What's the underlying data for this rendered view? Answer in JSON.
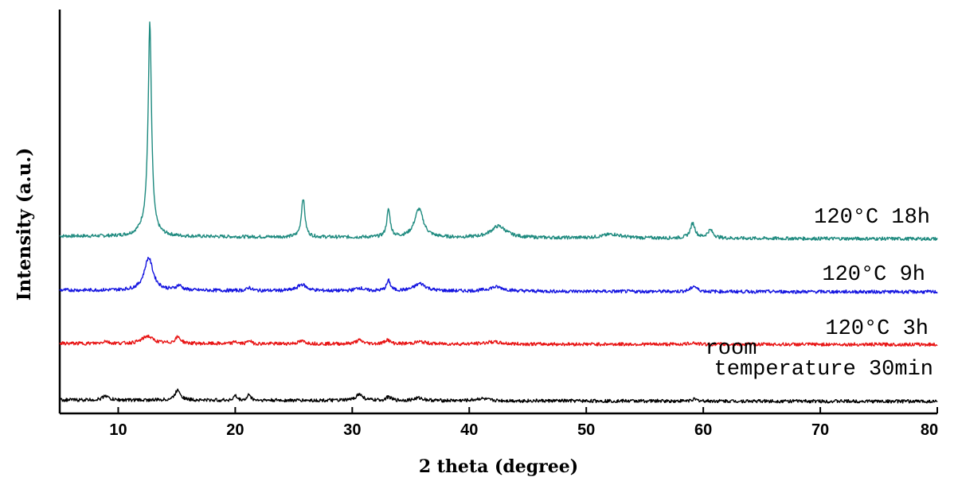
{
  "chart_data": {
    "type": "line",
    "title": "",
    "xlabel": "2 theta (degree)",
    "ylabel": "Intensity (a.u.)",
    "xlim": [
      5,
      80
    ],
    "xticks": [
      10,
      20,
      30,
      40,
      50,
      60,
      70,
      80
    ],
    "yticks_shown": false,
    "grid": false,
    "legend": "none",
    "labels_position": "right-of-curves",
    "series": [
      {
        "name": "120°C 18h",
        "label_lines": [
          "120°C 18h"
        ],
        "color": "#1e8a7f",
        "baseline": [
          [
            5,
            0.6
          ],
          [
            40,
            0.52
          ],
          [
            80,
            0.47
          ]
        ],
        "peaks": [
          {
            "x": 12.7,
            "h": 9.8,
            "w": 0.17
          },
          {
            "x": 12.4,
            "h": 0.5,
            "w": 0.6
          },
          {
            "x": 25.8,
            "h": 1.85,
            "w": 0.18
          },
          {
            "x": 33.1,
            "h": 1.3,
            "w": 0.18
          },
          {
            "x": 35.7,
            "h": 1.35,
            "w": 0.45
          },
          {
            "x": 42.5,
            "h": 0.55,
            "w": 0.8
          },
          {
            "x": 52.2,
            "h": 0.18,
            "w": 1.0
          },
          {
            "x": 59.1,
            "h": 0.7,
            "w": 0.25
          },
          {
            "x": 60.6,
            "h": 0.38,
            "w": 0.3
          }
        ]
      },
      {
        "name": "120°C 9h",
        "label_lines": [
          "120°C 9h"
        ],
        "color": "#1414e0",
        "baseline": [
          [
            5,
            0.38
          ],
          [
            40,
            0.33
          ],
          [
            80,
            0.3
          ]
        ],
        "peaks": [
          {
            "x": 12.6,
            "h": 1.55,
            "w": 0.45
          },
          {
            "x": 15.2,
            "h": 0.22,
            "w": 0.3
          },
          {
            "x": 21.2,
            "h": 0.15,
            "w": 0.2
          },
          {
            "x": 25.7,
            "h": 0.3,
            "w": 0.45
          },
          {
            "x": 30.6,
            "h": 0.14,
            "w": 0.4
          },
          {
            "x": 33.1,
            "h": 0.48,
            "w": 0.2
          },
          {
            "x": 35.8,
            "h": 0.35,
            "w": 0.6
          },
          {
            "x": 42.3,
            "h": 0.2,
            "w": 0.8
          },
          {
            "x": 59.2,
            "h": 0.26,
            "w": 0.3
          }
        ]
      },
      {
        "name": "120°C 3h",
        "label_lines": [
          "120°C 3h"
        ],
        "color": "#e81414",
        "baseline": [
          [
            5,
            0.22
          ],
          [
            40,
            0.19
          ],
          [
            80,
            0.17
          ]
        ],
        "peaks": [
          {
            "x": 8.9,
            "h": 0.12,
            "w": 0.25
          },
          {
            "x": 12.5,
            "h": 0.35,
            "w": 0.55
          },
          {
            "x": 15.1,
            "h": 0.3,
            "w": 0.3
          },
          {
            "x": 20.0,
            "h": 0.12,
            "w": 0.15
          },
          {
            "x": 21.2,
            "h": 0.18,
            "w": 0.15
          },
          {
            "x": 25.7,
            "h": 0.12,
            "w": 0.4
          },
          {
            "x": 30.6,
            "h": 0.17,
            "w": 0.35
          },
          {
            "x": 33.0,
            "h": 0.2,
            "w": 0.25
          },
          {
            "x": 35.8,
            "h": 0.1,
            "w": 0.6
          },
          {
            "x": 42.0,
            "h": 0.1,
            "w": 0.8
          },
          {
            "x": 59.1,
            "h": 0.08,
            "w": 0.3
          }
        ]
      },
      {
        "name": "room temperature 30min",
        "label_lines": [
          "room",
          "temperature 30min"
        ],
        "color": "#000000",
        "baseline": [
          [
            5,
            0.22
          ],
          [
            40,
            0.18
          ],
          [
            80,
            0.15
          ]
        ],
        "peaks": [
          {
            "x": 8.9,
            "h": 0.22,
            "w": 0.25
          },
          {
            "x": 15.1,
            "h": 0.5,
            "w": 0.28
          },
          {
            "x": 20.0,
            "h": 0.22,
            "w": 0.15
          },
          {
            "x": 21.2,
            "h": 0.3,
            "w": 0.15
          },
          {
            "x": 30.6,
            "h": 0.3,
            "w": 0.35
          },
          {
            "x": 33.1,
            "h": 0.17,
            "w": 0.25
          },
          {
            "x": 35.7,
            "h": 0.12,
            "w": 0.5
          },
          {
            "x": 41.0,
            "h": 0.1,
            "w": 0.6
          },
          {
            "x": 59.2,
            "h": 0.08,
            "w": 0.3
          }
        ]
      }
    ]
  }
}
